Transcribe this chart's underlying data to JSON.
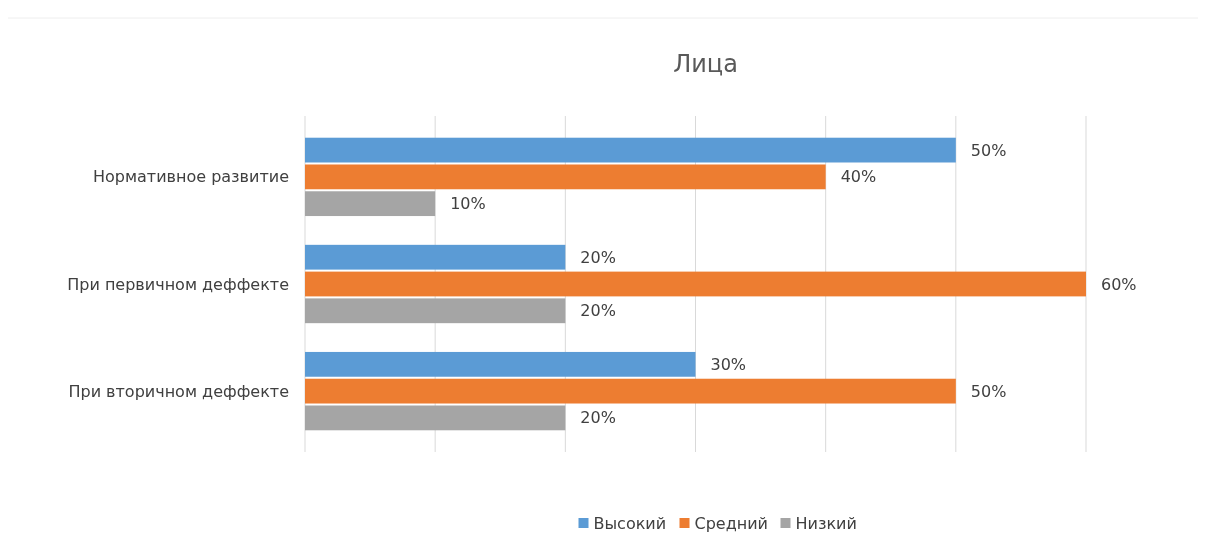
{
  "chart_data": {
    "type": "bar",
    "orientation": "horizontal",
    "title": "Лица",
    "categories": [
      "Нормативное развитие",
      "При первичном деффекте",
      "При вторичном деффекте"
    ],
    "series": [
      {
        "name": "Высокий",
        "color": "#5b9bd5",
        "values": [
          50,
          20,
          30
        ],
        "value_labels": [
          "50%",
          "20%",
          "30%"
        ]
      },
      {
        "name": "Средний",
        "color": "#ed7d31",
        "values": [
          40,
          60,
          50
        ],
        "value_labels": [
          "40%",
          "60%",
          "50%"
        ]
      },
      {
        "name": "Низкий",
        "color": "#a5a5a5",
        "values": [
          10,
          20,
          20
        ],
        "value_labels": [
          "10%",
          "20%",
          "20%"
        ]
      }
    ],
    "xlim": [
      0,
      60
    ],
    "xticks": [
      {
        "value": 0,
        "label": null
      },
      {
        "value": 10,
        "label": null
      },
      {
        "value": 20,
        "label": null
      },
      {
        "value": 30,
        "label": null
      },
      {
        "value": 40,
        "label": null
      },
      {
        "value": 50,
        "label": null
      },
      {
        "value": 60,
        "label": null
      }
    ],
    "tick_labels": "y",
    "grid": "x",
    "legend": "bottom"
  }
}
